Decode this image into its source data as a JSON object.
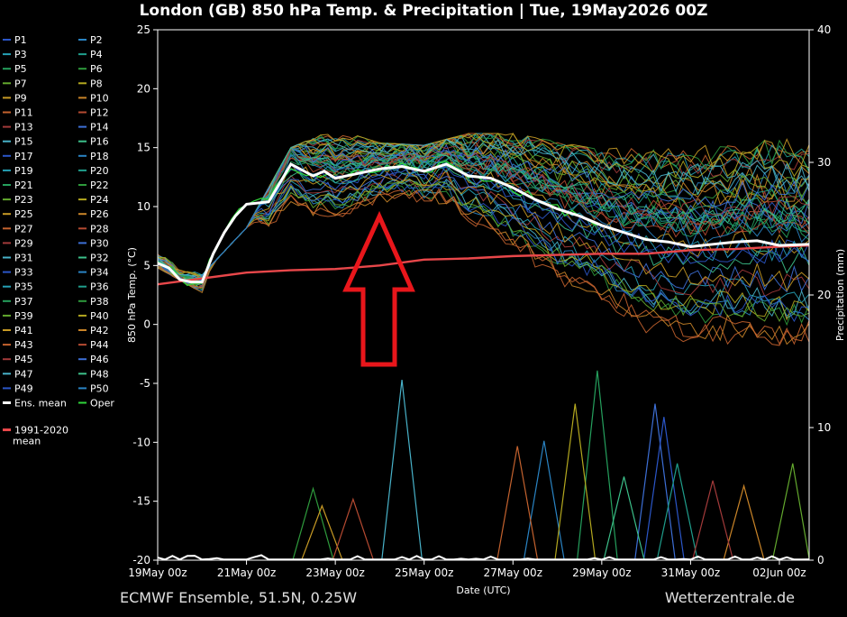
{
  "header": {
    "title": "London  (GB)  850 hPa Temp. & Precipitation | Tue, 19May2026 00Z"
  },
  "footer": {
    "source": "ECMWF Ensemble, 51.5N, 0.25W",
    "site": "Wetterzentrale.de"
  },
  "colors": {
    "background": "#000000",
    "ens_mean": "#ffffff",
    "climate_mean": "#e8474a",
    "oper": "#2fd43a",
    "annotation_arrow": "#e8161b"
  },
  "legend": {
    "members": [
      "P1",
      "P2",
      "P3",
      "P4",
      "P5",
      "P6",
      "P7",
      "P8",
      "P9",
      "P10",
      "P11",
      "P12",
      "P13",
      "P14",
      "P15",
      "P16",
      "P17",
      "P18",
      "P19",
      "P20",
      "P21",
      "P22",
      "P23",
      "P24",
      "P25",
      "P26",
      "P27",
      "P28",
      "P29",
      "P30",
      "P31",
      "P32",
      "P33",
      "P34",
      "P35",
      "P36",
      "P37",
      "P38",
      "P39",
      "P40",
      "P41",
      "P42",
      "P43",
      "P44",
      "P45",
      "P46",
      "P47",
      "P48",
      "P49",
      "P50"
    ],
    "ens_mean": "Ens. mean",
    "oper": "Oper",
    "climate_mean": "1991-2020\nmean"
  },
  "chart_data": {
    "type": "line",
    "title": "London  (GB)  850 hPa Temp. & Precipitation | Tue, 19May2026 00Z",
    "xlabel": "Date (UTC)",
    "ylabel": "850 hPa Temp. (°C)",
    "ylabel_right": "Precipitation (mm)",
    "x_ticks": [
      "19May 00z",
      "21May 00z",
      "23May 00z",
      "25May 00z",
      "27May 00z",
      "29May 00z",
      "31May 00z",
      "02Jun 00z"
    ],
    "y_ticks": [
      25,
      20,
      15,
      10,
      5,
      0,
      -5,
      -10,
      -15,
      -20
    ],
    "y_ticks_right": [
      40,
      30,
      20,
      10,
      0
    ],
    "ylim": [
      -20,
      25
    ],
    "ylim_right": [
      0,
      40
    ],
    "x_range_days": [
      0,
      14.67
    ],
    "grid": false,
    "legend_placement": "left",
    "ens_mean": {
      "x_days": [
        0,
        0.25,
        0.5,
        0.75,
        1,
        1.25,
        1.5,
        1.75,
        2,
        2.5,
        3,
        3.5,
        3.75,
        4,
        4.5,
        5,
        5.5,
        6,
        6.5,
        7,
        7.5,
        8,
        8.5,
        9,
        9.5,
        10,
        10.5,
        11,
        11.5,
        12,
        12.5,
        13,
        13.5,
        14,
        14.67
      ],
      "values": [
        5.2,
        4.8,
        3.8,
        3.6,
        3.6,
        6.0,
        7.8,
        9.2,
        10.2,
        10.4,
        13.6,
        12.6,
        13.0,
        12.4,
        12.8,
        13.2,
        13.4,
        13.0,
        13.6,
        12.6,
        12.4,
        11.6,
        10.6,
        9.8,
        9.2,
        8.4,
        7.8,
        7.2,
        7.0,
        6.6,
        6.8,
        7.0,
        7.1,
        6.7,
        6.8
      ]
    },
    "climate_mean": {
      "x_days": [
        0,
        1,
        2,
        3,
        4,
        5,
        6,
        7,
        8,
        9,
        10,
        11,
        12,
        13,
        14,
        14.67
      ],
      "values": [
        3.4,
        3.9,
        4.4,
        4.6,
        4.7,
        5.0,
        5.5,
        5.6,
        5.8,
        5.9,
        6.0,
        6.0,
        6.3,
        6.4,
        6.6,
        6.7
      ]
    },
    "members_envelope": {
      "x_days": [
        0,
        1,
        2,
        3,
        4,
        5,
        6,
        7,
        8,
        9,
        10,
        11,
        12,
        13,
        14,
        14.67
      ],
      "min": [
        4.8,
        2.7,
        5.6,
        7.5,
        8.8,
        9.3,
        9.5,
        7.6,
        5.0,
        2.0,
        0.0,
        -2.0,
        -3.0,
        -2.5,
        -1.8,
        -1.5
      ],
      "max": [
        6.0,
        4.2,
        8.2,
        15.0,
        16.6,
        15.4,
        15.2,
        16.2,
        16.2,
        15.5,
        14.8,
        15.4,
        15.8,
        16.0,
        18.4,
        17.0
      ]
    },
    "precip_members_peaks_mm": [
      {
        "x_day": 3.5,
        "mm": 5.4
      },
      {
        "x_day": 3.7,
        "mm": 4.1
      },
      {
        "x_day": 4.4,
        "mm": 4.6
      },
      {
        "x_day": 5.5,
        "mm": 13.6
      },
      {
        "x_day": 8.7,
        "mm": 9.0
      },
      {
        "x_day": 9.9,
        "mm": 14.3
      },
      {
        "x_day": 9.4,
        "mm": 11.8
      },
      {
        "x_day": 8.1,
        "mm": 8.6
      },
      {
        "x_day": 11.2,
        "mm": 11.8
      },
      {
        "x_day": 11.4,
        "mm": 10.8
      },
      {
        "x_day": 11.7,
        "mm": 7.3
      },
      {
        "x_day": 14.3,
        "mm": 7.3
      },
      {
        "x_day": 13.2,
        "mm": 5.6
      },
      {
        "x_day": 12.5,
        "mm": 6.0
      },
      {
        "x_day": 10.5,
        "mm": 6.3
      }
    ]
  }
}
